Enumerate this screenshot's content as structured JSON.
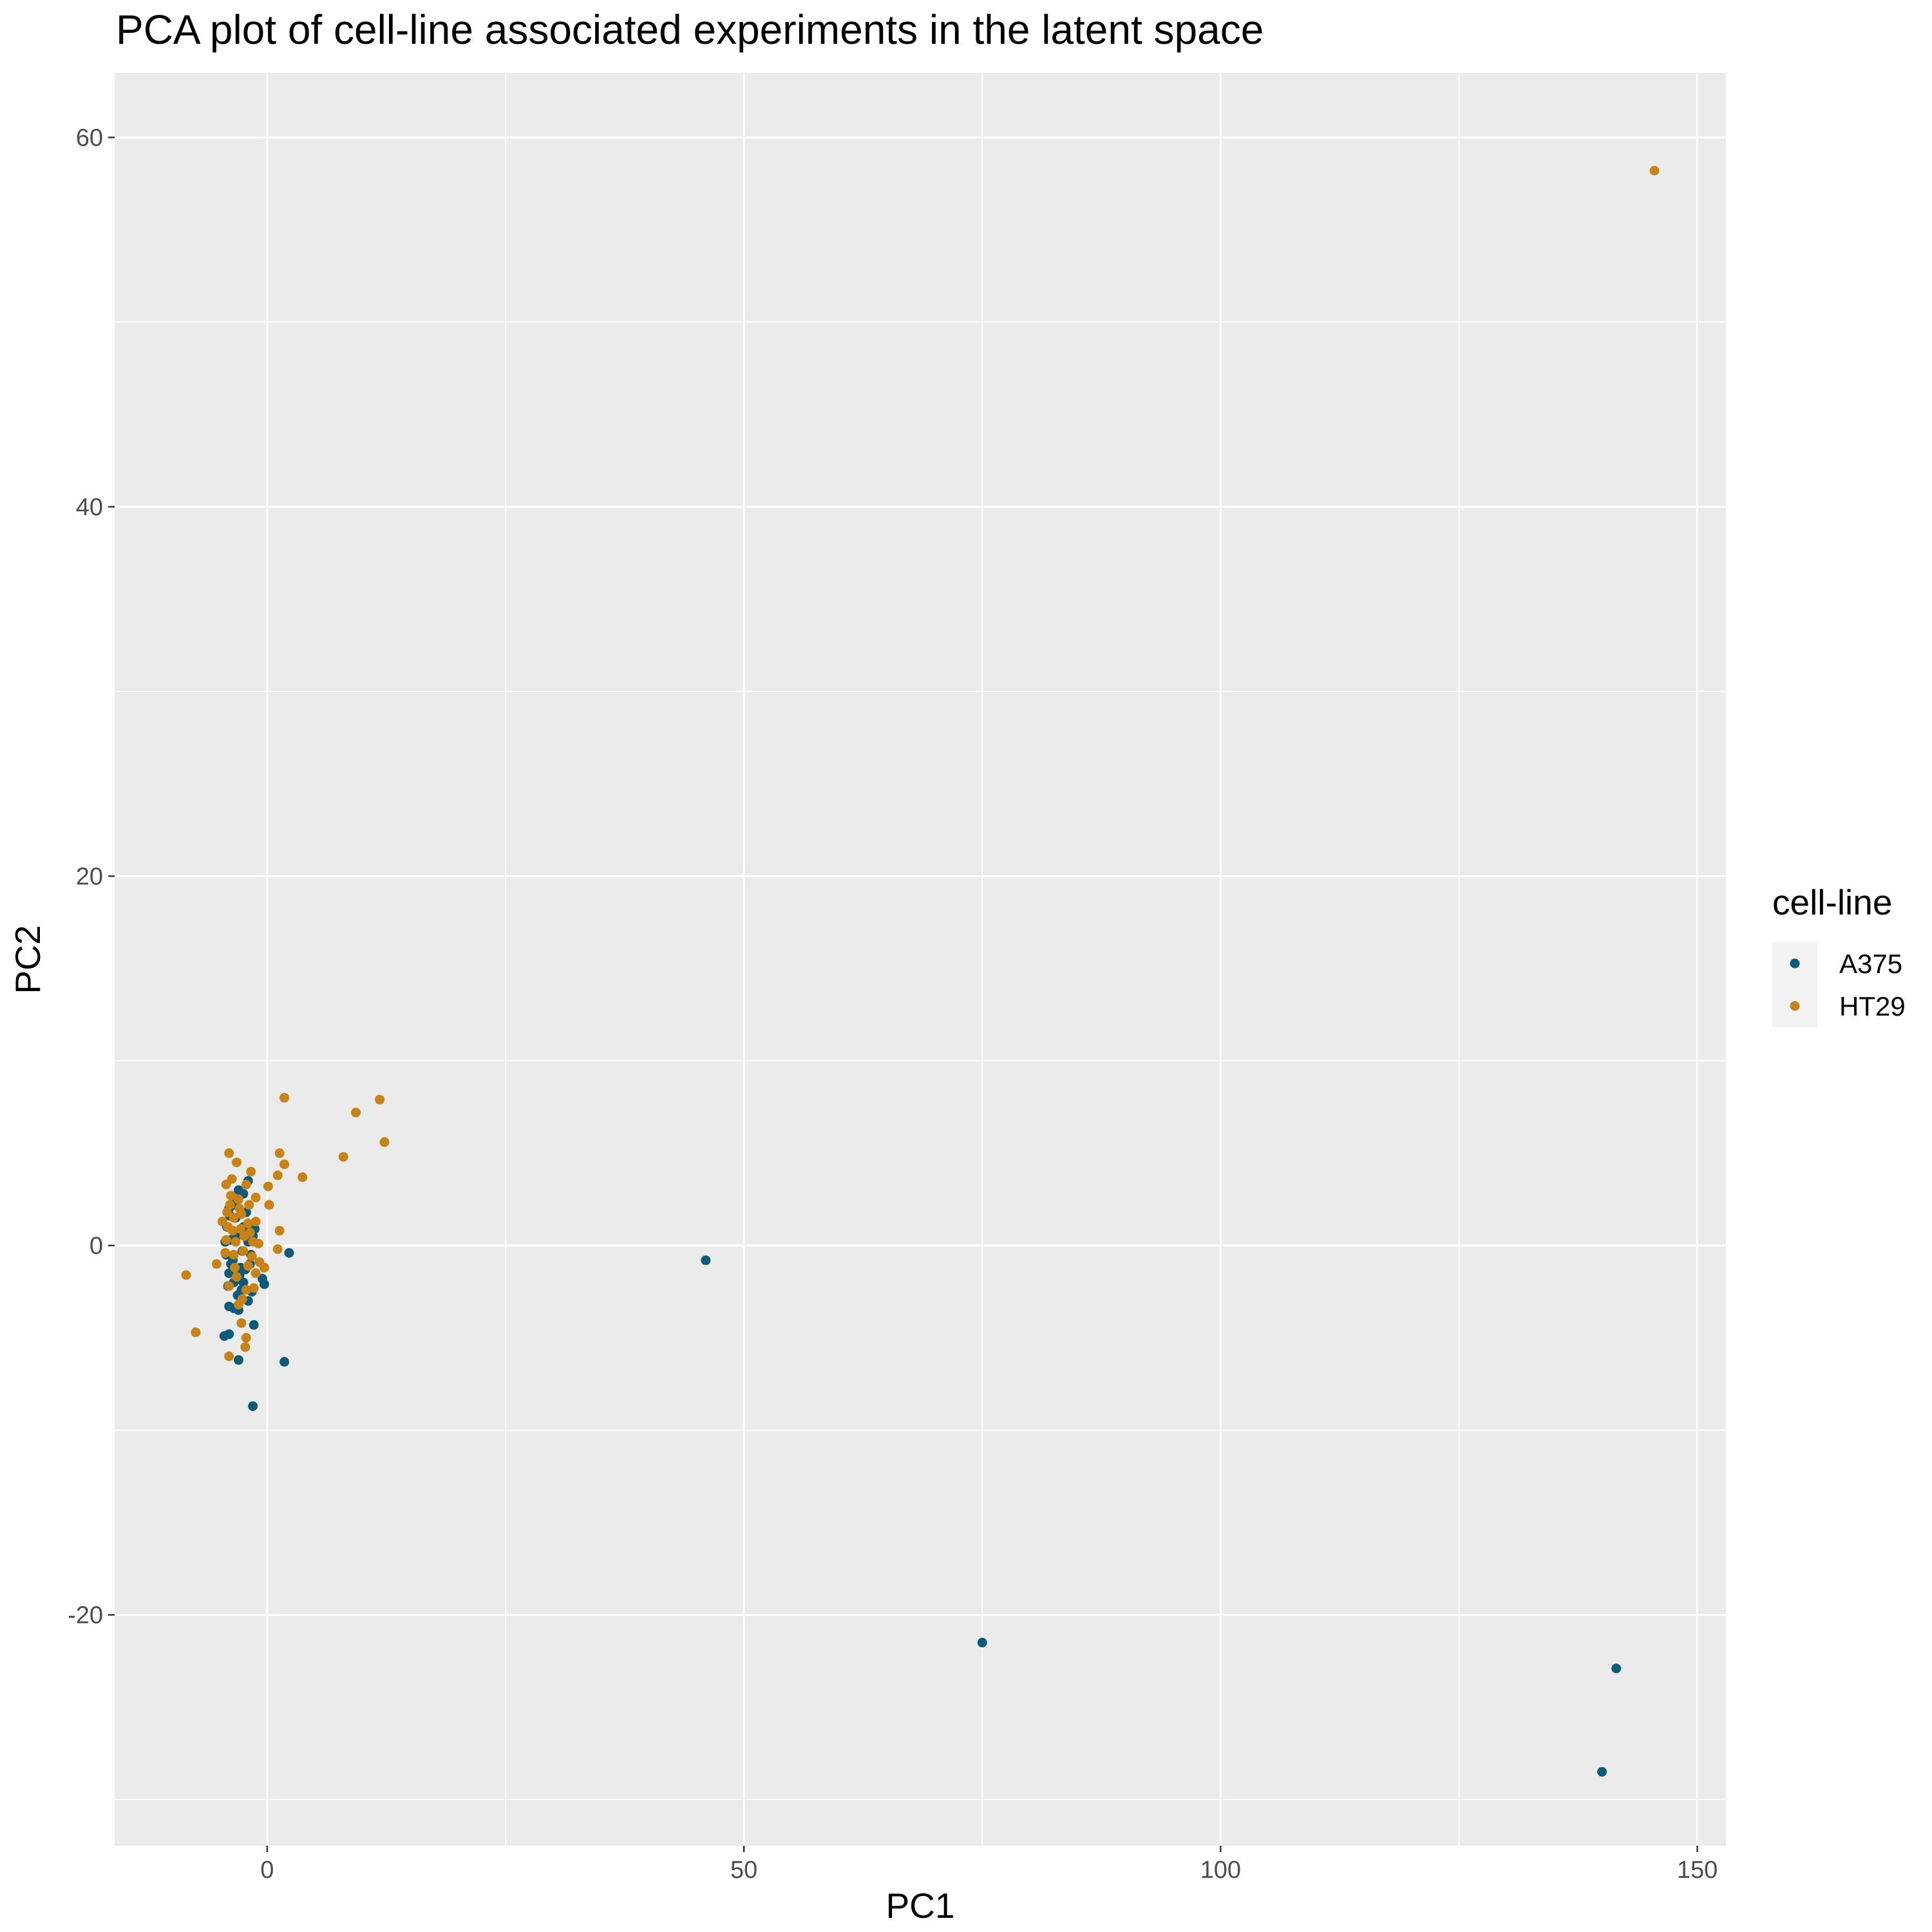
{
  "chart_data": {
    "type": "scatter",
    "title": "PCA plot of cell-line associated experiments in the latent space",
    "xlabel": "PC1",
    "ylabel": "PC2",
    "xlim": [
      -16,
      153
    ],
    "ylim": [
      -32.5,
      63.5
    ],
    "x_ticks": [
      0,
      50,
      100,
      150
    ],
    "y_ticks": [
      -20,
      0,
      20,
      40,
      60
    ],
    "x_tick_labels": [
      "0",
      "50",
      "100",
      "150"
    ],
    "y_tick_labels": [
      "-20",
      "0",
      "20",
      "40",
      "60"
    ],
    "grid": true,
    "legend_position": "right",
    "legend_title": "cell-line",
    "series": [
      {
        "name": "A375",
        "color": "#0d5b7a",
        "points": [
          [
            46,
            -0.8
          ],
          [
            75,
            -21.5
          ],
          [
            141.5,
            -22.9
          ],
          [
            140,
            -28.5
          ],
          [
            2.3,
            -0.4
          ],
          [
            1.8,
            -6.3
          ],
          [
            -1.5,
            -8.7
          ],
          [
            -1.4,
            -4.3
          ],
          [
            -3,
            -6.2
          ],
          [
            -4.5,
            -4.9
          ],
          [
            -4,
            -4.8
          ],
          [
            -0.3,
            -2.1
          ],
          [
            -0.5,
            -1.8
          ],
          [
            -4,
            -3.3
          ],
          [
            -3.5,
            -3.4
          ],
          [
            -3,
            -3.5
          ],
          [
            -2,
            -3
          ],
          [
            -1.6,
            -2.5
          ],
          [
            -2.5,
            -2
          ],
          [
            -3.5,
            -2
          ],
          [
            -4,
            -1.5
          ],
          [
            -4.3,
            -0.5
          ],
          [
            -3.8,
            0.3
          ],
          [
            -3.2,
            0.5
          ],
          [
            -2.5,
            1
          ],
          [
            -2,
            0.2
          ],
          [
            -1.5,
            0.5
          ],
          [
            -4,
            2
          ],
          [
            -3.5,
            2.5
          ],
          [
            -3,
            3
          ],
          [
            -2.5,
            2.8
          ],
          [
            -2,
            3.5
          ],
          [
            -1.8,
            -1
          ],
          [
            -2.8,
            -1.2
          ],
          [
            -3.8,
            -1
          ],
          [
            -4.2,
            1
          ],
          [
            -3.3,
            1.5
          ],
          [
            -2.2,
            1.8
          ],
          [
            -1.7,
            -0.5
          ],
          [
            -2.6,
            -0.3
          ],
          [
            -3.1,
            -2.7
          ],
          [
            -4.1,
            -2.2
          ],
          [
            -2.9,
            -1.6
          ],
          [
            -3.6,
            -0.8
          ],
          [
            -4.4,
            0.2
          ],
          [
            -2.3,
            -1.3
          ],
          [
            -1.3,
            0.9
          ],
          [
            -3.4,
            2.2
          ],
          [
            -3.9,
            1.6
          ],
          [
            -2.7,
            -2.4
          ]
        ]
      },
      {
        "name": "HT29",
        "color": "#c88314",
        "points": [
          [
            145.5,
            58.2
          ],
          [
            1.8,
            8
          ],
          [
            9.3,
            7.2
          ],
          [
            11.8,
            7.9
          ],
          [
            12.3,
            5.6
          ],
          [
            8,
            4.8
          ],
          [
            3.7,
            3.7
          ],
          [
            1.3,
            5
          ],
          [
            1.8,
            4.4
          ],
          [
            1.1,
            3.8
          ],
          [
            0.1,
            3.2
          ],
          [
            0.2,
            2.2
          ],
          [
            1.3,
            0.8
          ],
          [
            1.1,
            -0.2
          ],
          [
            -0.3,
            -1.2
          ],
          [
            -8.5,
            -1.6
          ],
          [
            -7.5,
            -4.7
          ],
          [
            -5.3,
            -1
          ],
          [
            -4,
            -6
          ],
          [
            -2.2,
            -5
          ],
          [
            -2.3,
            -5.5
          ],
          [
            -2.7,
            -4.2
          ],
          [
            -4,
            5
          ],
          [
            -3.2,
            4.5
          ],
          [
            -1.7,
            4
          ],
          [
            -4.3,
            3.3
          ],
          [
            -3.7,
            3.6
          ],
          [
            -2.2,
            3.3
          ],
          [
            -1.2,
            2.6
          ],
          [
            -3.8,
            2.7
          ],
          [
            -3,
            2.5
          ],
          [
            -4.7,
            1.3
          ],
          [
            -4.1,
            1
          ],
          [
            -3.5,
            1.5
          ],
          [
            -2.7,
            1.7
          ],
          [
            -2,
            1.2
          ],
          [
            -1.2,
            1.3
          ],
          [
            -4.3,
            0.3
          ],
          [
            -3.3,
            0.2
          ],
          [
            -2.4,
            0.5
          ],
          [
            -1.5,
            0.2
          ],
          [
            -0.9,
            0.1
          ],
          [
            -4.4,
            -0.4
          ],
          [
            -3.5,
            -0.5
          ],
          [
            -2.5,
            -0.3
          ],
          [
            -1.6,
            -0.6
          ],
          [
            -0.8,
            -0.9
          ],
          [
            -4,
            -2.2
          ],
          [
            -3.2,
            -1.7
          ],
          [
            -2.2,
            -2.4
          ],
          [
            -1.4,
            -2.3
          ],
          [
            -3,
            -3.2
          ],
          [
            -2.6,
            -2.9
          ],
          [
            -4.2,
            1.8
          ],
          [
            -3.9,
            2.2
          ],
          [
            -2.9,
            2
          ],
          [
            -1.9,
            2.2
          ],
          [
            -3.4,
            -1.2
          ],
          [
            -2,
            -1.1
          ],
          [
            -1.2,
            -1.5
          ],
          [
            -3.6,
            0.8
          ],
          [
            -2.8,
            0.9
          ],
          [
            -1.8,
            0.7
          ]
        ]
      }
    ]
  }
}
